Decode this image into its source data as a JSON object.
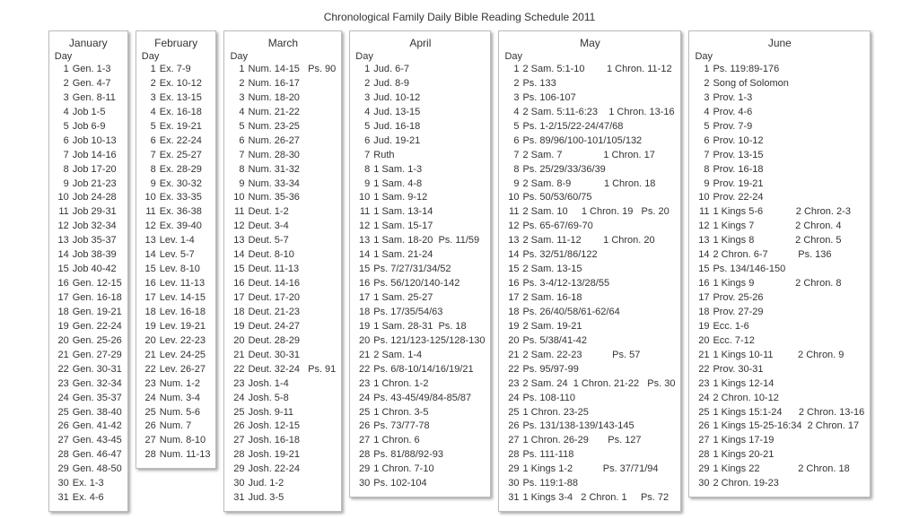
{
  "title": "Chronological Family Daily Bible Reading Schedule 2011",
  "day_header": "Day",
  "months": [
    {
      "name": "January",
      "rows": [
        {
          "d": 1,
          "r": [
            "Gen. 1-3"
          ]
        },
        {
          "d": 2,
          "r": [
            "Gen. 4-7"
          ]
        },
        {
          "d": 3,
          "r": [
            "Gen. 8-11"
          ]
        },
        {
          "d": 4,
          "r": [
            "Job 1-5"
          ]
        },
        {
          "d": 5,
          "r": [
            "Job 6-9"
          ]
        },
        {
          "d": 6,
          "r": [
            "Job 10-13"
          ]
        },
        {
          "d": 7,
          "r": [
            "Job 14-16"
          ]
        },
        {
          "d": 8,
          "r": [
            "Job 17-20"
          ]
        },
        {
          "d": 9,
          "r": [
            "Job 21-23"
          ]
        },
        {
          "d": 10,
          "r": [
            "Job 24-28"
          ]
        },
        {
          "d": 11,
          "r": [
            "Job 29-31"
          ]
        },
        {
          "d": 12,
          "r": [
            "Job 32-34"
          ]
        },
        {
          "d": 13,
          "r": [
            "Job 35-37"
          ]
        },
        {
          "d": 14,
          "r": [
            "Job 38-39"
          ]
        },
        {
          "d": 15,
          "r": [
            "Job 40-42"
          ]
        },
        {
          "d": 16,
          "r": [
            "Gen. 12-15"
          ]
        },
        {
          "d": 17,
          "r": [
            "Gen. 16-18"
          ]
        },
        {
          "d": 18,
          "r": [
            "Gen. 19-21"
          ]
        },
        {
          "d": 19,
          "r": [
            "Gen. 22-24"
          ]
        },
        {
          "d": 20,
          "r": [
            "Gen. 25-26"
          ]
        },
        {
          "d": 21,
          "r": [
            "Gen. 27-29"
          ]
        },
        {
          "d": 22,
          "r": [
            "Gen. 30-31"
          ]
        },
        {
          "d": 23,
          "r": [
            "Gen. 32-34"
          ]
        },
        {
          "d": 24,
          "r": [
            "Gen. 35-37"
          ]
        },
        {
          "d": 25,
          "r": [
            "Gen. 38-40"
          ]
        },
        {
          "d": 26,
          "r": [
            "Gen. 41-42"
          ]
        },
        {
          "d": 27,
          "r": [
            "Gen. 43-45"
          ]
        },
        {
          "d": 28,
          "r": [
            "Gen. 46-47"
          ]
        },
        {
          "d": 29,
          "r": [
            "Gen. 48-50"
          ]
        },
        {
          "d": 30,
          "r": [
            "Ex. 1-3"
          ]
        },
        {
          "d": 31,
          "r": [
            "Ex. 4-6"
          ]
        }
      ]
    },
    {
      "name": "February",
      "rows": [
        {
          "d": 1,
          "r": [
            "Ex. 7-9"
          ]
        },
        {
          "d": 2,
          "r": [
            "Ex. 10-12"
          ]
        },
        {
          "d": 3,
          "r": [
            "Ex. 13-15"
          ]
        },
        {
          "d": 4,
          "r": [
            "Ex. 16-18"
          ]
        },
        {
          "d": 5,
          "r": [
            "Ex. 19-21"
          ]
        },
        {
          "d": 6,
          "r": [
            "Ex. 22-24"
          ]
        },
        {
          "d": 7,
          "r": [
            "Ex. 25-27"
          ]
        },
        {
          "d": 8,
          "r": [
            "Ex. 28-29"
          ]
        },
        {
          "d": 9,
          "r": [
            "Ex. 30-32"
          ]
        },
        {
          "d": 10,
          "r": [
            "Ex. 33-35"
          ]
        },
        {
          "d": 11,
          "r": [
            "Ex. 36-38"
          ]
        },
        {
          "d": 12,
          "r": [
            "Ex. 39-40"
          ]
        },
        {
          "d": 13,
          "r": [
            "Lev. 1-4"
          ]
        },
        {
          "d": 14,
          "r": [
            "Lev. 5-7"
          ]
        },
        {
          "d": 15,
          "r": [
            "Lev. 8-10"
          ]
        },
        {
          "d": 16,
          "r": [
            "Lev. 11-13"
          ]
        },
        {
          "d": 17,
          "r": [
            "Lev. 14-15"
          ]
        },
        {
          "d": 18,
          "r": [
            "Lev. 16-18"
          ]
        },
        {
          "d": 19,
          "r": [
            "Lev. 19-21"
          ]
        },
        {
          "d": 20,
          "r": [
            "Lev. 22-23"
          ]
        },
        {
          "d": 21,
          "r": [
            "Lev. 24-25"
          ]
        },
        {
          "d": 22,
          "r": [
            "Lev. 26-27"
          ]
        },
        {
          "d": 23,
          "r": [
            "Num. 1-2"
          ]
        },
        {
          "d": 24,
          "r": [
            "Num. 3-4"
          ]
        },
        {
          "d": 25,
          "r": [
            "Num. 5-6"
          ]
        },
        {
          "d": 26,
          "r": [
            "Num. 7"
          ]
        },
        {
          "d": 27,
          "r": [
            "Num. 8-10"
          ]
        },
        {
          "d": 28,
          "r": [
            "Num. 11-13"
          ]
        }
      ]
    },
    {
      "name": "March",
      "rows": [
        {
          "d": 1,
          "r": [
            "Num. 14-15",
            "Ps. 90"
          ]
        },
        {
          "d": 2,
          "r": [
            "Num. 16-17"
          ]
        },
        {
          "d": 3,
          "r": [
            "Num. 18-20"
          ]
        },
        {
          "d": 4,
          "r": [
            "Num. 21-22"
          ]
        },
        {
          "d": 5,
          "r": [
            "Num. 23-25"
          ]
        },
        {
          "d": 6,
          "r": [
            "Num. 26-27"
          ]
        },
        {
          "d": 7,
          "r": [
            "Num. 28-30"
          ]
        },
        {
          "d": 8,
          "r": [
            "Num. 31-32"
          ]
        },
        {
          "d": 9,
          "r": [
            "Num. 33-34"
          ]
        },
        {
          "d": 10,
          "r": [
            "Num. 35-36"
          ]
        },
        {
          "d": 11,
          "r": [
            "Deut. 1-2"
          ]
        },
        {
          "d": 12,
          "r": [
            "Deut. 3-4"
          ]
        },
        {
          "d": 13,
          "r": [
            "Deut. 5-7"
          ]
        },
        {
          "d": 14,
          "r": [
            "Deut. 8-10"
          ]
        },
        {
          "d": 15,
          "r": [
            "Deut. 11-13"
          ]
        },
        {
          "d": 16,
          "r": [
            "Deut. 14-16"
          ]
        },
        {
          "d": 17,
          "r": [
            "Deut. 17-20"
          ]
        },
        {
          "d": 18,
          "r": [
            "Deut. 21-23"
          ]
        },
        {
          "d": 19,
          "r": [
            "Deut. 24-27"
          ]
        },
        {
          "d": 20,
          "r": [
            "Deut. 28-29"
          ]
        },
        {
          "d": 21,
          "r": [
            "Deut. 30-31"
          ]
        },
        {
          "d": 22,
          "r": [
            "Deut. 32-24",
            "Ps. 91"
          ]
        },
        {
          "d": 23,
          "r": [
            "Josh. 1-4"
          ]
        },
        {
          "d": 24,
          "r": [
            "Josh. 5-8"
          ]
        },
        {
          "d": 25,
          "r": [
            "Josh. 9-11"
          ]
        },
        {
          "d": 26,
          "r": [
            "Josh. 12-15"
          ]
        },
        {
          "d": 27,
          "r": [
            "Josh. 16-18"
          ]
        },
        {
          "d": 28,
          "r": [
            "Josh. 19-21"
          ]
        },
        {
          "d": 29,
          "r": [
            "Josh. 22-24"
          ]
        },
        {
          "d": 30,
          "r": [
            "Jud. 1-2"
          ]
        },
        {
          "d": 31,
          "r": [
            "Jud. 3-5"
          ]
        }
      ]
    },
    {
      "name": "April",
      "rows": [
        {
          "d": 1,
          "r": [
            "Jud. 6-7"
          ]
        },
        {
          "d": 2,
          "r": [
            "Jud. 8-9"
          ]
        },
        {
          "d": 3,
          "r": [
            "Jud. 10-12"
          ]
        },
        {
          "d": 4,
          "r": [
            "Jud. 13-15"
          ]
        },
        {
          "d": 5,
          "r": [
            "Jud. 16-18"
          ]
        },
        {
          "d": 6,
          "r": [
            "Jud. 19-21"
          ]
        },
        {
          "d": 7,
          "r": [
            "Ruth"
          ]
        },
        {
          "d": 8,
          "r": [
            "1 Sam. 1-3"
          ]
        },
        {
          "d": 9,
          "r": [
            "1 Sam. 4-8"
          ]
        },
        {
          "d": 10,
          "r": [
            "1 Sam. 9-12"
          ]
        },
        {
          "d": 11,
          "r": [
            "1 Sam. 13-14"
          ]
        },
        {
          "d": 12,
          "r": [
            "1 Sam. 15-17"
          ]
        },
        {
          "d": 13,
          "r": [
            "1 Sam. 18-20  Ps. 11/59"
          ]
        },
        {
          "d": 14,
          "r": [
            "1 Sam. 21-24"
          ]
        },
        {
          "d": 15,
          "r": [
            "Ps. 7/27/31/34/52"
          ]
        },
        {
          "d": 16,
          "r": [
            "Ps. 56/120/140-142"
          ]
        },
        {
          "d": 17,
          "r": [
            "1 Sam. 25-27"
          ]
        },
        {
          "d": 18,
          "r": [
            "Ps. 17/35/54/63"
          ]
        },
        {
          "d": 19,
          "r": [
            "1 Sam. 28-31  Ps. 18"
          ]
        },
        {
          "d": 20,
          "r": [
            "Ps. 121/123-125/128-130"
          ]
        },
        {
          "d": 21,
          "r": [
            "2 Sam. 1-4"
          ]
        },
        {
          "d": 22,
          "r": [
            "Ps. 6/8-10/14/16/19/21"
          ]
        },
        {
          "d": 23,
          "r": [
            "1 Chron. 1-2"
          ]
        },
        {
          "d": 24,
          "r": [
            "Ps. 43-45/49/84-85/87"
          ]
        },
        {
          "d": 25,
          "r": [
            "1 Chron. 3-5"
          ]
        },
        {
          "d": 26,
          "r": [
            "Ps. 73/77-78"
          ]
        },
        {
          "d": 27,
          "r": [
            "1 Chron. 6"
          ]
        },
        {
          "d": 28,
          "r": [
            "Ps. 81/88/92-93"
          ]
        },
        {
          "d": 29,
          "r": [
            "1 Chron. 7-10"
          ]
        },
        {
          "d": 30,
          "r": [
            "Ps. 102-104"
          ]
        }
      ]
    },
    {
      "name": "May",
      "rows": [
        {
          "d": 1,
          "r": [
            "2 Sam. 5:1-10",
            "     1 Chron. 11-12"
          ]
        },
        {
          "d": 2,
          "r": [
            "Ps. 133"
          ]
        },
        {
          "d": 3,
          "r": [
            "Ps. 106-107"
          ]
        },
        {
          "d": 4,
          "r": [
            "2 Sam. 5:11-6:23",
            " 1 Chron. 13-16"
          ]
        },
        {
          "d": 5,
          "r": [
            "Ps. 1-2/15/22-24/47/68"
          ]
        },
        {
          "d": 6,
          "r": [
            "Ps. 89/96/100-101/105/132"
          ]
        },
        {
          "d": 7,
          "r": [
            "2 Sam. 7",
            "            1 Chron. 17"
          ]
        },
        {
          "d": 8,
          "r": [
            "Ps. 25/29/33/36/39"
          ]
        },
        {
          "d": 9,
          "r": [
            "2 Sam. 8-9",
            "         1 Chron. 18"
          ]
        },
        {
          "d": 10,
          "r": [
            "Ps. 50/53/60/75"
          ]
        },
        {
          "d": 11,
          "r": [
            "2 Sam. 10",
            "  1 Chron. 19",
            "Ps. 20"
          ]
        },
        {
          "d": 12,
          "r": [
            "Ps. 65-67/69-70"
          ]
        },
        {
          "d": 13,
          "r": [
            "2 Sam. 11-12",
            "     1 Chron. 20"
          ]
        },
        {
          "d": 14,
          "r": [
            "Ps. 32/51/86/122"
          ]
        },
        {
          "d": 15,
          "r": [
            "2 Sam. 13-15"
          ]
        },
        {
          "d": 16,
          "r": [
            "Ps. 3-4/12-13/28/55"
          ]
        },
        {
          "d": 17,
          "r": [
            "2 Sam. 16-18"
          ]
        },
        {
          "d": 18,
          "r": [
            "Ps. 26/40/58/61-62/64"
          ]
        },
        {
          "d": 19,
          "r": [
            "2 Sam. 19-21"
          ]
        },
        {
          "d": 20,
          "r": [
            "Ps. 5/38/41-42"
          ]
        },
        {
          "d": 21,
          "r": [
            "2 Sam. 22-23",
            "        Ps. 57"
          ]
        },
        {
          "d": 22,
          "r": [
            "Ps. 95/97-99"
          ]
        },
        {
          "d": 23,
          "r": [
            "2 Sam. 24  1 Chron. 21-22",
            "Ps. 30"
          ]
        },
        {
          "d": 24,
          "r": [
            "Ps. 108-110"
          ]
        },
        {
          "d": 25,
          "r": [
            "1 Chron. 23-25"
          ]
        },
        {
          "d": 26,
          "r": [
            "Ps. 131/138-139/143-145"
          ]
        },
        {
          "d": 27,
          "r": [
            "1 Chron. 26-29",
            "    Ps. 127"
          ]
        },
        {
          "d": 28,
          "r": [
            "Ps. 111-118"
          ]
        },
        {
          "d": 29,
          "r": [
            "1 Kings 1-2",
            "        Ps. 37/71/94"
          ]
        },
        {
          "d": 30,
          "r": [
            "Ps. 119:1-88"
          ]
        },
        {
          "d": 31,
          "r": [
            "1 Kings 3-4",
            "2 Chron. 1",
            "  Ps. 72"
          ]
        }
      ]
    },
    {
      "name": "June",
      "rows": [
        {
          "d": 1,
          "r": [
            "Ps. 119:89-176"
          ]
        },
        {
          "d": 2,
          "r": [
            "Song of Solomon"
          ]
        },
        {
          "d": 3,
          "r": [
            "Prov. 1-3"
          ]
        },
        {
          "d": 4,
          "r": [
            "Prov. 4-6"
          ]
        },
        {
          "d": 5,
          "r": [
            "Prov. 7-9"
          ]
        },
        {
          "d": 6,
          "r": [
            "Prov. 10-12"
          ]
        },
        {
          "d": 7,
          "r": [
            "Prov. 13-15"
          ]
        },
        {
          "d": 8,
          "r": [
            "Prov. 16-18"
          ]
        },
        {
          "d": 9,
          "r": [
            "Prov. 19-21"
          ]
        },
        {
          "d": 10,
          "r": [
            "Prov. 22-24"
          ]
        },
        {
          "d": 11,
          "r": [
            "1 Kings 5-6",
            "         2 Chron. 2-3"
          ]
        },
        {
          "d": 12,
          "r": [
            "1 Kings 7",
            "            2 Chron. 4"
          ]
        },
        {
          "d": 13,
          "r": [
            "1 Kings 8",
            "            2 Chron. 5"
          ]
        },
        {
          "d": 14,
          "r": [
            "2 Chron. 6-7",
            "        Ps. 136"
          ]
        },
        {
          "d": 15,
          "r": [
            "Ps. 134/146-150"
          ]
        },
        {
          "d": 16,
          "r": [
            "1 Kings 9",
            "            2 Chron. 8"
          ]
        },
        {
          "d": 17,
          "r": [
            "Prov. 25-26"
          ]
        },
        {
          "d": 18,
          "r": [
            "Prov. 27-29"
          ]
        },
        {
          "d": 19,
          "r": [
            "Ecc. 1-6"
          ]
        },
        {
          "d": 20,
          "r": [
            "Ecc. 7-12"
          ]
        },
        {
          "d": 21,
          "r": [
            "1 Kings 10-11",
            "      2 Chron. 9"
          ]
        },
        {
          "d": 22,
          "r": [
            "Prov. 30-31"
          ]
        },
        {
          "d": 23,
          "r": [
            "1 Kings 12-14"
          ]
        },
        {
          "d": 24,
          "r": [
            "2 Chron. 10-12"
          ]
        },
        {
          "d": 25,
          "r": [
            "1 Kings 15:1-24",
            "   2 Chron. 13-16"
          ]
        },
        {
          "d": 26,
          "r": [
            "1 Kings 15-25-16:34  2 Chron. 17"
          ]
        },
        {
          "d": 27,
          "r": [
            "1 Kings 17-19"
          ]
        },
        {
          "d": 28,
          "r": [
            "1 Kings 20-21"
          ]
        },
        {
          "d": 29,
          "r": [
            "1 Kings 22",
            "           2 Chron. 18"
          ]
        },
        {
          "d": 30,
          "r": [
            "2 Chron. 19-23"
          ]
        }
      ]
    }
  ]
}
